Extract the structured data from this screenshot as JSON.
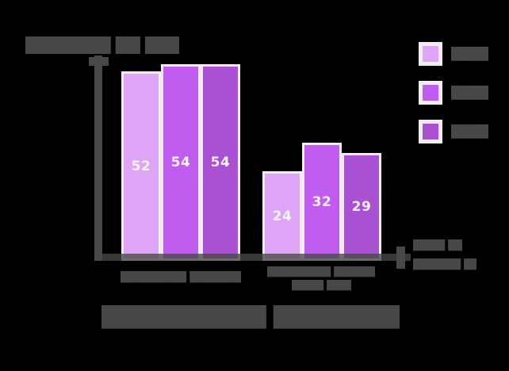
{
  "note": "All text in the source screenshot is pixel-blurred (illegible) except the numeric bar value labels; blurred text is reproduced as block glyphs.",
  "chart_data": {
    "type": "bar",
    "title": "(illegible – blurred two-word title at bottom)",
    "ylabel": "(illegible – blurred label at top of y-axis)",
    "xlabel": "(illegible – blurred two-line label at right end of x-axis)",
    "categories": [
      "(illegible group label 1)",
      "(illegible group label 2)"
    ],
    "series": [
      {
        "name": "(illegible legend 1)",
        "color": "#dea5f7",
        "values": [
          52,
          24
        ]
      },
      {
        "name": "(illegible legend 2)",
        "color": "#c05cef",
        "values": [
          54,
          32
        ]
      },
      {
        "name": "(illegible legend 3)",
        "color": "#aa50d3",
        "values": [
          54,
          29
        ]
      }
    ],
    "value_labels_shown": true,
    "legend_position": "top-right",
    "grid": false,
    "axis_color": "#484848",
    "background": "#000000",
    "bar_border_color": "#f0ecf1"
  },
  "redacted_blobs": {
    "y_axis_title": "███████ ██ █████",
    "x_axis_label_line1": "████ ███",
    "x_axis_label_line2": "██████ ███",
    "group1_label": "████████ ██████████",
    "group2_label_line1": "████████ ████████",
    "group2_label_line2": "████ ████",
    "legend_labels": [
      "█████",
      "█████",
      "█████"
    ],
    "bottom_title": "██████████ █████████████"
  }
}
